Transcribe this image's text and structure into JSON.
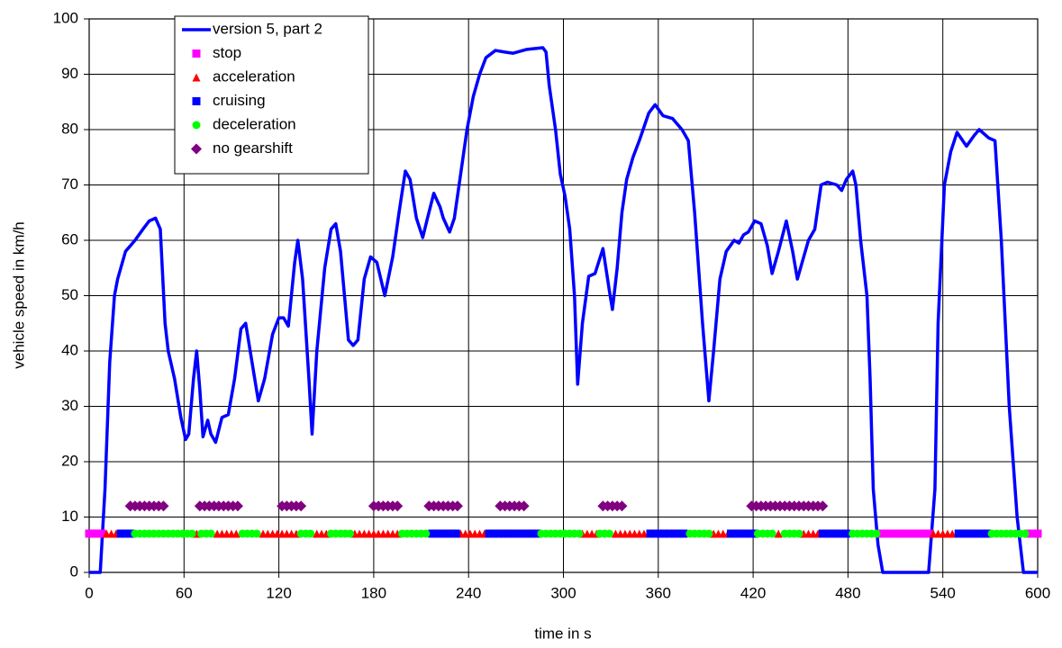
{
  "chart_data": {
    "type": "line",
    "xlabel": "time in s",
    "ylabel": "vehicle speed in km/h",
    "xlim": [
      0,
      600
    ],
    "xticks": [
      0,
      60,
      120,
      180,
      240,
      300,
      360,
      420,
      480,
      540,
      600
    ],
    "ylim": [
      0,
      100
    ],
    "yticks": [
      0,
      10,
      20,
      30,
      40,
      50,
      60,
      70,
      80,
      90,
      100
    ],
    "grid": true,
    "legend": "upper left",
    "series": [
      {
        "name": "version 5, part 2",
        "type": "line",
        "color": "#0000ff",
        "x": [
          0,
          7,
          10,
          13,
          16,
          18,
          23,
          29,
          34,
          38,
          42,
          45,
          48,
          50,
          54,
          58,
          61,
          63,
          66,
          68,
          70,
          72,
          75,
          77,
          80,
          84,
          88,
          92,
          96,
          99,
          103,
          107,
          111,
          116,
          120,
          123,
          126,
          130,
          132,
          135,
          139,
          141,
          144,
          149,
          153,
          156,
          159,
          164,
          167,
          170,
          174,
          178,
          182,
          187,
          192,
          196,
          200,
          203,
          207,
          211,
          214,
          218,
          222,
          224,
          228,
          231,
          235,
          239,
          243,
          247,
          251,
          257,
          263,
          268,
          277,
          287,
          289,
          291,
          295,
          298,
          301,
          304,
          307,
          309,
          312,
          316,
          320,
          325,
          329,
          331,
          334,
          337,
          340,
          344,
          348,
          354,
          358,
          363,
          369,
          375,
          379,
          383,
          388,
          392,
          395,
          399,
          403,
          408,
          411,
          414,
          417,
          421,
          425,
          429,
          432,
          436,
          441,
          445,
          448,
          452,
          455,
          459,
          463,
          467,
          473,
          476,
          479,
          483,
          485,
          488,
          492,
          494,
          496,
          499,
          502,
          531,
          535,
          537,
          541,
          545,
          549,
          555,
          560,
          563,
          569,
          573,
          577,
          582,
          587,
          591,
          600
        ],
        "values": [
          0,
          0,
          15,
          38,
          50,
          53,
          58,
          60,
          62,
          63.5,
          64,
          62,
          45,
          40,
          35,
          28,
          24,
          25,
          35,
          40,
          33,
          24.5,
          27.5,
          25,
          23.5,
          28,
          28.5,
          35,
          44,
          45,
          38,
          31,
          35,
          43,
          46,
          46,
          44.5,
          56,
          60,
          53,
          35,
          25,
          40,
          55,
          62,
          63,
          58,
          42,
          41,
          42,
          53,
          57,
          56,
          50,
          57,
          65,
          72.5,
          71,
          64,
          60.5,
          64,
          68.5,
          66,
          64,
          61.5,
          64,
          72,
          80,
          86,
          90,
          93,
          94.3,
          94,
          93.8,
          94.5,
          94.8,
          94,
          88,
          80,
          72,
          68,
          62,
          50,
          34,
          45,
          53.5,
          54,
          58.5,
          51,
          47.5,
          55,
          65,
          71,
          75,
          78,
          83,
          84.5,
          82.5,
          82,
          80,
          78,
          65,
          45,
          31,
          40,
          53,
          58,
          60,
          59.5,
          61,
          61.5,
          63.5,
          63,
          59,
          54,
          58,
          63.5,
          58,
          53,
          57,
          60,
          62,
          70,
          70.5,
          70,
          69,
          71,
          72.5,
          70,
          60,
          50,
          35,
          15,
          5,
          0,
          0,
          15,
          45,
          70,
          76,
          79.5,
          77,
          79,
          80,
          78.5,
          78,
          60,
          30,
          10,
          0,
          0
        ]
      },
      {
        "name": "stop",
        "type": "scatter",
        "marker": "square",
        "color": "#ff00ff",
        "x": [
          0,
          2,
          4,
          6,
          8,
          501,
          504,
          507,
          510,
          513,
          516,
          519,
          522,
          525,
          528,
          531,
          594,
          597,
          600
        ],
        "values": [
          7,
          7,
          7,
          7,
          7,
          7,
          7,
          7,
          7,
          7,
          7,
          7,
          7,
          7,
          7,
          7,
          7,
          7,
          7
        ]
      },
      {
        "name": "acceleration",
        "type": "scatter",
        "marker": "triangle",
        "color": "#ff0000",
        "x": [
          11,
          14,
          17,
          68,
          81,
          84,
          87,
          90,
          93,
          110,
          113,
          116,
          119,
          122,
          125,
          128,
          131,
          144,
          147,
          150,
          168,
          171,
          174,
          177,
          180,
          183,
          186,
          189,
          192,
          195,
          235,
          238,
          241,
          244,
          247,
          250,
          312,
          315,
          318,
          321,
          333,
          336,
          339,
          342,
          345,
          348,
          351,
          395,
          398,
          401,
          404,
          436,
          452,
          455,
          458,
          461,
          534,
          537,
          540,
          543,
          546
        ],
        "values": [
          7,
          7,
          7,
          7,
          7,
          7,
          7,
          7,
          7,
          7,
          7,
          7,
          7,
          7,
          7,
          7,
          7,
          7,
          7,
          7,
          7,
          7,
          7,
          7,
          7,
          7,
          7,
          7,
          7,
          7,
          7,
          7,
          7,
          7,
          7,
          7,
          7,
          7,
          7,
          7,
          7,
          7,
          7,
          7,
          7,
          7,
          7,
          7,
          7,
          7,
          7,
          7,
          7,
          7,
          7,
          7,
          7,
          7,
          7,
          7,
          7
        ]
      },
      {
        "name": "cruising",
        "type": "scatter",
        "marker": "square",
        "color": "#0000ff",
        "x": [
          20,
          23,
          26,
          217,
          220,
          223,
          226,
          229,
          232,
          253,
          256,
          259,
          262,
          265,
          268,
          271,
          274,
          277,
          280,
          283,
          355,
          358,
          361,
          364,
          367,
          370,
          373,
          376,
          406,
          409,
          412,
          415,
          418,
          421,
          464,
          467,
          470,
          473,
          476,
          479,
          550,
          553,
          556,
          559,
          562,
          565,
          568
        ],
        "values": [
          7,
          7,
          7,
          7,
          7,
          7,
          7,
          7,
          7,
          7,
          7,
          7,
          7,
          7,
          7,
          7,
          7,
          7,
          7,
          7,
          7,
          7,
          7,
          7,
          7,
          7,
          7,
          7,
          7,
          7,
          7,
          7,
          7,
          7,
          7,
          7,
          7,
          7,
          7,
          7,
          7,
          7,
          7,
          7,
          7,
          7,
          7
        ]
      },
      {
        "name": "deceleration",
        "type": "scatter",
        "marker": "circle",
        "color": "#00ff00",
        "x": [
          29,
          32,
          35,
          38,
          41,
          44,
          47,
          50,
          53,
          56,
          59,
          62,
          65,
          71,
          74,
          77,
          97,
          100,
          103,
          106,
          134,
          137,
          140,
          153,
          156,
          159,
          162,
          165,
          198,
          201,
          204,
          207,
          210,
          213,
          286,
          289,
          292,
          295,
          298,
          301,
          304,
          307,
          310,
          323,
          326,
          329,
          380,
          383,
          386,
          389,
          392,
          423,
          426,
          429,
          432,
          440,
          443,
          446,
          449,
          483,
          486,
          489,
          492,
          495,
          498,
          571,
          574,
          577,
          580,
          583,
          586,
          589,
          592
        ],
        "values": [
          7,
          7,
          7,
          7,
          7,
          7,
          7,
          7,
          7,
          7,
          7,
          7,
          7,
          7,
          7,
          7,
          7,
          7,
          7,
          7,
          7,
          7,
          7,
          7,
          7,
          7,
          7,
          7,
          7,
          7,
          7,
          7,
          7,
          7,
          7,
          7,
          7,
          7,
          7,
          7,
          7,
          7,
          7,
          7,
          7,
          7,
          7,
          7,
          7,
          7,
          7,
          7,
          7,
          7,
          7,
          7,
          7,
          7,
          7,
          7,
          7,
          7,
          7,
          7,
          7,
          7,
          7,
          7,
          7,
          7,
          7,
          7,
          7
        ]
      },
      {
        "name": "no gearshift",
        "type": "scatter",
        "marker": "diamond",
        "color": "#800080",
        "x": [
          26,
          29,
          32,
          35,
          38,
          41,
          44,
          47,
          70,
          73,
          76,
          79,
          82,
          85,
          88,
          91,
          94,
          122,
          125,
          128,
          131,
          134,
          180,
          183,
          186,
          189,
          192,
          195,
          215,
          218,
          221,
          224,
          227,
          230,
          233,
          260,
          263,
          266,
          269,
          272,
          275,
          325,
          328,
          331,
          334,
          337,
          419,
          422,
          425,
          428,
          431,
          434,
          437,
          440,
          443,
          446,
          449,
          452,
          455,
          458,
          461,
          464
        ],
        "values": [
          12,
          12,
          12,
          12,
          12,
          12,
          12,
          12,
          12,
          12,
          12,
          12,
          12,
          12,
          12,
          12,
          12,
          12,
          12,
          12,
          12,
          12,
          12,
          12,
          12,
          12,
          12,
          12,
          12,
          12,
          12,
          12,
          12,
          12,
          12,
          12,
          12,
          12,
          12,
          12,
          12,
          12,
          12,
          12,
          12,
          12,
          12,
          12,
          12,
          12,
          12,
          12,
          12,
          12,
          12,
          12,
          12,
          12,
          12,
          12,
          12,
          12
        ]
      }
    ]
  }
}
